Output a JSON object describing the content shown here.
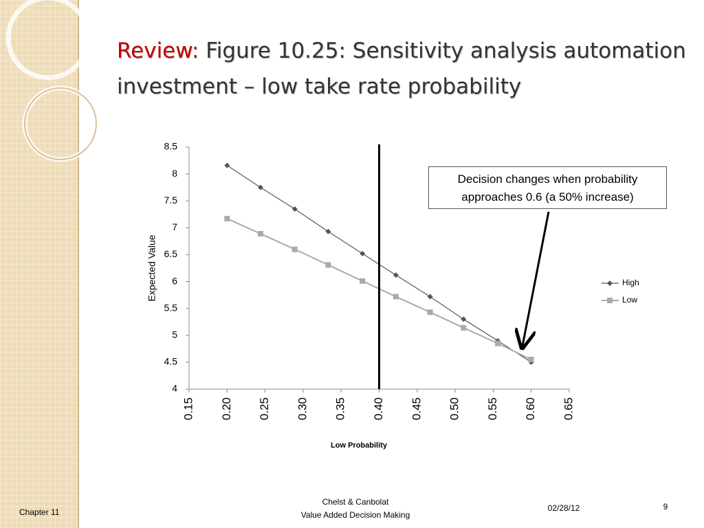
{
  "slide": {
    "title_prefix": "Review:",
    "title": "Figure 10.25: Sensitivity analysis automation investment – low take rate probability",
    "annotation": "Decision changes when probability approaches 0.6 (a 50% increase)",
    "footer_left": "Chapter 11",
    "footer_center_1": "Chelst & Canbolat",
    "footer_center_2": "Value Added Decision Making",
    "footer_date": "02/28/12",
    "page_number": "9"
  },
  "chart_data": {
    "type": "line",
    "x_label": "Low Probability",
    "y_label": "Expected Value",
    "x": [
      0.2,
      0.244,
      0.289,
      0.333,
      0.378,
      0.422,
      0.467,
      0.511,
      0.556,
      0.6
    ],
    "series": [
      {
        "name": "High",
        "color": "#555555",
        "marker": "diamond",
        "values": [
          8.16,
          7.75,
          7.35,
          6.93,
          6.52,
          6.12,
          5.72,
          5.3,
          4.9,
          4.5
        ]
      },
      {
        "name": "Low",
        "color": "#aaaaaa",
        "marker": "square",
        "values": [
          7.17,
          6.89,
          6.6,
          6.31,
          6.01,
          5.72,
          5.43,
          5.14,
          4.85,
          4.55
        ]
      }
    ],
    "xlim": [
      0.15,
      0.65
    ],
    "xticks": [
      0.15,
      {
        "value": 0.2,
        "label": "0.20"
      },
      0.25,
      {
        "value": 0.3,
        "label": "0.30"
      },
      0.35,
      {
        "value": 0.4,
        "label": "0.40"
      },
      0.45,
      {
        "value": 0.5,
        "label": "0.50"
      },
      0.55,
      {
        "value": 0.6,
        "label": "0.60"
      },
      0.65
    ],
    "ylim": [
      4,
      8.5
    ],
    "yticks": [
      4,
      4.5,
      5,
      5.5,
      6,
      6.5,
      7,
      7.5,
      8,
      8.5
    ],
    "reference_line_x": 0.4,
    "legend": "right",
    "grid": false
  }
}
